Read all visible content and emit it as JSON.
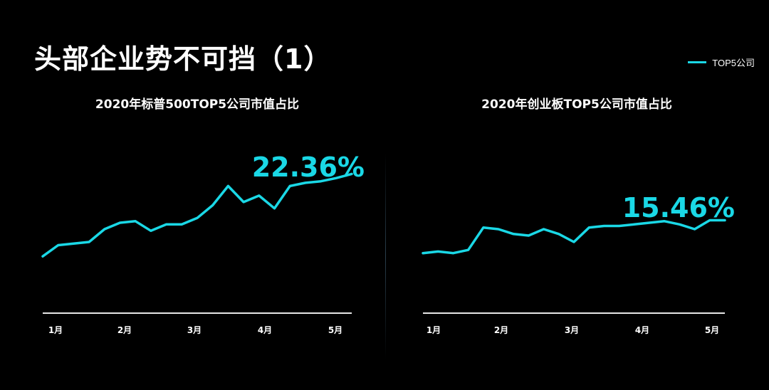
{
  "page": {
    "title": "头部企业势不可挡（1）"
  },
  "legend": {
    "label": "TOP5公司",
    "color": "#1ad8e6"
  },
  "colors": {
    "series": "#1ad8e6",
    "axis": "#e6e6e6",
    "background": "#000000"
  },
  "chart_data": [
    {
      "type": "line",
      "title": "2020年标普500TOP5公司市值占比",
      "xlabel": "",
      "ylabel": "",
      "tick_labels": [
        "1月",
        "2月",
        "3月",
        "4月",
        "5月"
      ],
      "series": [
        {
          "name": "TOP5公司",
          "values": [
            17.2,
            17.9,
            18.0,
            18.1,
            18.9,
            19.3,
            19.4,
            18.8,
            19.2,
            19.2,
            19.6,
            20.4,
            21.6,
            20.6,
            21.0,
            20.2,
            21.6,
            21.8,
            21.9,
            22.1,
            22.36
          ]
        }
      ],
      "ylim": [
        14,
        23
      ],
      "highlight": "22.36%",
      "grid": false
    },
    {
      "type": "line",
      "title": "2020年创业板TOP5公司市值占比",
      "xlabel": "",
      "ylabel": "",
      "tick_labels": [
        "1月",
        "2月",
        "3月",
        "4月",
        "5月"
      ],
      "series": [
        {
          "name": "TOP5公司",
          "values": [
            13.4,
            13.5,
            13.4,
            13.6,
            15.0,
            14.9,
            14.6,
            14.5,
            14.9,
            14.6,
            14.1,
            15.0,
            15.1,
            15.1,
            15.2,
            15.3,
            15.4,
            15.2,
            14.9,
            15.46,
            15.46
          ]
        }
      ],
      "ylim": [
        10,
        19
      ],
      "highlight": "15.46%",
      "grid": false
    }
  ]
}
